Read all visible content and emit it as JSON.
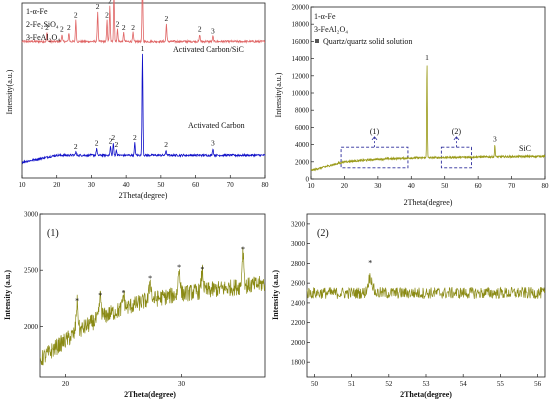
{
  "chart_data": [
    {
      "type": "line",
      "panel": "a",
      "xlabel": "2Theta(degree)",
      "ylabel": "Intensity(a.u.)",
      "xlim": [
        10,
        80
      ],
      "xticks": [
        10,
        20,
        30,
        40,
        50,
        60,
        70,
        80
      ],
      "legend_lines": [
        "1-α-Fe",
        "2-Fe₂SiO₄",
        "3-FeAl₂O₄"
      ],
      "series": [
        {
          "name": "Activated Carbon/SiC",
          "color": "#e06666",
          "baseline": 0.78,
          "peaks": [
            {
              "x": 17.2,
              "h": 0.05,
              "label": "2"
            },
            {
              "x": 21.5,
              "h": 0.04,
              "label": "2"
            },
            {
              "x": 23.5,
              "h": 0.05,
              "label": "2"
            },
            {
              "x": 25.5,
              "h": 0.12,
              "label": "2"
            },
            {
              "x": 31.8,
              "h": 0.17,
              "label": "2"
            },
            {
              "x": 34.5,
              "h": 0.12,
              "label": "2"
            },
            {
              "x": 35.3,
              "h": 0.2,
              "label": "2"
            },
            {
              "x": 36.5,
              "h": 0.28,
              "label": "2"
            },
            {
              "x": 37.5,
              "h": 0.07,
              "label": "2"
            },
            {
              "x": 39.3,
              "h": 0.05,
              "label": "2"
            },
            {
              "x": 42.0,
              "h": 0.05,
              "label": "2"
            },
            {
              "x": 44.7,
              "h": 0.36,
              "label": "1"
            },
            {
              "x": 51.6,
              "h": 0.1,
              "label": "2"
            },
            {
              "x": 61.2,
              "h": 0.04,
              "label": "2"
            },
            {
              "x": 65.0,
              "h": 0.03,
              "label": "3"
            }
          ]
        },
        {
          "name": "Activated Carbon",
          "color": "#1010c8",
          "baseline": 0.13,
          "peaks": [
            {
              "x": 25.5,
              "h": 0.02,
              "label": "2"
            },
            {
              "x": 31.5,
              "h": 0.04,
              "label": "2"
            },
            {
              "x": 35.5,
              "h": 0.05,
              "label": "2"
            },
            {
              "x": 36.3,
              "h": 0.07,
              "label": "2"
            },
            {
              "x": 37.2,
              "h": 0.03,
              "label": "2"
            },
            {
              "x": 42.5,
              "h": 0.07,
              "label": "2"
            },
            {
              "x": 44.7,
              "h": 0.58,
              "label": "1"
            },
            {
              "x": 51.5,
              "h": 0.03,
              "label": "2"
            },
            {
              "x": 65.0,
              "h": 0.04,
              "label": "3"
            }
          ]
        }
      ]
    },
    {
      "type": "line",
      "panel": "b",
      "xlabel": "2Theta(degree)",
      "ylabel": "Intensity(a.u.)",
      "xlim": [
        10,
        80
      ],
      "ylim": [
        0,
        20000
      ],
      "xticks": [
        10,
        20,
        30,
        40,
        50,
        60,
        70,
        80
      ],
      "yticks": [
        0,
        2000,
        4000,
        6000,
        8000,
        10000,
        12000,
        14000,
        16000,
        18000,
        20000
      ],
      "legend_lines": [
        "1-α-Fe",
        "3-FeAl₂O₄"
      ],
      "legend_symbol": "Quartz/quartz solid solution",
      "series_label": "SiC",
      "color": "#9a9a18",
      "baseline_points": [
        [
          10,
          1000
        ],
        [
          20,
          2000
        ],
        [
          30,
          2300
        ],
        [
          40,
          2450
        ],
        [
          50,
          2500
        ],
        [
          60,
          2560
        ],
        [
          70,
          2600
        ],
        [
          80,
          2650
        ]
      ],
      "peaks": [
        {
          "x": 44.7,
          "y": 13500,
          "label": "1"
        },
        {
          "x": 65.0,
          "y": 4000,
          "label": "3"
        }
      ],
      "zoom_boxes": [
        {
          "label": "(1)",
          "x": [
            19,
            39
          ]
        },
        {
          "label": "(2)",
          "x": [
            49,
            58
          ]
        }
      ]
    },
    {
      "type": "line",
      "panel": "1",
      "panel_label": "(1)",
      "xlabel": "2Theta(degree)",
      "ylabel": "Intensity (a.u.)",
      "xlim": [
        17.8,
        37.2
      ],
      "ylim": [
        1550,
        3000
      ],
      "xticks": [
        20,
        30
      ],
      "yticks": [
        2000,
        2500,
        3000
      ],
      "color": "#8a8a14",
      "baseline_points": [
        [
          17.8,
          1700
        ],
        [
          19,
          1800
        ],
        [
          21,
          1950
        ],
        [
          23,
          2080
        ],
        [
          25,
          2160
        ],
        [
          27,
          2230
        ],
        [
          30,
          2290
        ],
        [
          33,
          2330
        ],
        [
          37.2,
          2380
        ]
      ],
      "marked_peaks": [
        {
          "x": 21.0,
          "y": 2150
        },
        {
          "x": 23.0,
          "y": 2200
        },
        {
          "x": 25.0,
          "y": 2220
        },
        {
          "x": 27.3,
          "y": 2350
        },
        {
          "x": 29.8,
          "y": 2450
        },
        {
          "x": 31.8,
          "y": 2430
        },
        {
          "x": 35.3,
          "y": 2610
        }
      ],
      "marker": "*"
    },
    {
      "type": "line",
      "panel": "2",
      "panel_label": "(2)",
      "xlabel": "2Theta(degree)",
      "ylabel": "Intensity (a.u.)",
      "xlim": [
        49.8,
        56.2
      ],
      "ylim": [
        1650,
        3300
      ],
      "xticks": [
        50,
        51,
        52,
        53,
        54,
        55,
        56
      ],
      "yticks": [
        1800,
        2000,
        2200,
        2400,
        2600,
        2800,
        3000,
        3200
      ],
      "color": "#8a8a14",
      "baseline": 2500,
      "marked_peaks": [
        {
          "x": 51.5,
          "y": 2700
        }
      ],
      "marker": "*"
    }
  ]
}
